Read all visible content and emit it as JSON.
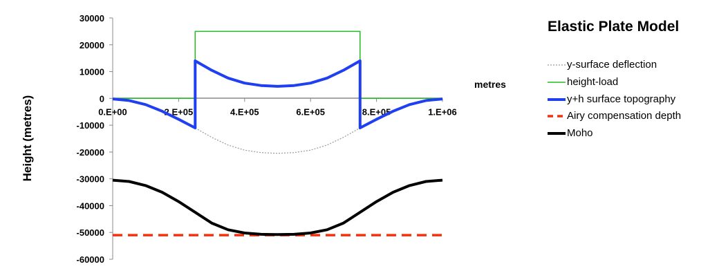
{
  "chart_data": {
    "type": "line",
    "title": "Elastic Plate Model",
    "ylabel": "Height (metres)",
    "xlabel": "metres",
    "xlim": [
      0,
      1000000
    ],
    "ylim": [
      -60000,
      30000
    ],
    "grid": false,
    "legend_position": "right",
    "x_ticks": [
      0,
      200000,
      400000,
      600000,
      800000,
      1000000
    ],
    "x_tick_labels": [
      "0.E+00",
      "2.E+05",
      "4.E+05",
      "6.E+05",
      "8.E+05",
      "1.E+06"
    ],
    "y_ticks": [
      30000,
      20000,
      10000,
      0,
      -10000,
      -20000,
      -30000,
      -40000,
      -50000,
      -60000
    ],
    "y_tick_labels": [
      "30000",
      "20000",
      "10000",
      "0",
      "-10000",
      "-20000",
      "-30000",
      "-40000",
      "-50000",
      "-60000"
    ],
    "series": [
      {
        "name": "y-surface deflection",
        "color": "#999999",
        "style": "dotted",
        "x": [
          0,
          50000,
          100000,
          150000,
          200000,
          250000,
          300000,
          350000,
          400000,
          450000,
          500000,
          550000,
          600000,
          650000,
          700000,
          750000,
          800000,
          850000,
          900000,
          950000,
          1000000
        ],
        "y": [
          -200,
          -800,
          -2300,
          -4800,
          -7800,
          -11000,
          -14500,
          -17400,
          -19300,
          -20200,
          -20500,
          -20200,
          -19300,
          -17400,
          -14500,
          -11000,
          -7800,
          -4800,
          -2300,
          -800,
          -200
        ]
      },
      {
        "name": "height-load",
        "color": "#22bb22",
        "style": "solid",
        "x": [
          0,
          250000,
          250000,
          750000,
          750000,
          1000000
        ],
        "y": [
          0,
          0,
          25000,
          25000,
          0,
          0
        ]
      },
      {
        "name": "y+h  surface topography",
        "color": "#1f3ff0",
        "style": "solid",
        "x": [
          0,
          50000,
          100000,
          150000,
          200000,
          250000,
          250000,
          300000,
          350000,
          400000,
          450000,
          500000,
          550000,
          600000,
          650000,
          700000,
          750000,
          750000,
          800000,
          850000,
          900000,
          950000,
          1000000
        ],
        "y": [
          -200,
          -800,
          -2300,
          -4800,
          -7800,
          -11000,
          14000,
          10500,
          7600,
          5700,
          4800,
          4500,
          4800,
          5700,
          7600,
          10500,
          14000,
          -11000,
          -7800,
          -4800,
          -2300,
          -800,
          -200
        ]
      },
      {
        "name": "Airy compensation depth",
        "color": "#ee3311",
        "style": "dashed",
        "x": [
          0,
          1000000
        ],
        "y": [
          -51000,
          -51000
        ]
      },
      {
        "name": "Moho",
        "color": "#000000",
        "style": "solid",
        "x": [
          0,
          50000,
          100000,
          150000,
          200000,
          250000,
          300000,
          350000,
          400000,
          450000,
          500000,
          550000,
          600000,
          650000,
          700000,
          750000,
          800000,
          850000,
          900000,
          950000,
          1000000
        ],
        "y": [
          -30500,
          -31000,
          -32500,
          -35000,
          -38500,
          -42500,
          -46500,
          -49000,
          -50200,
          -50700,
          -50800,
          -50700,
          -50200,
          -49000,
          -46500,
          -42500,
          -38500,
          -35000,
          -32500,
          -31000,
          -30500
        ]
      }
    ]
  }
}
